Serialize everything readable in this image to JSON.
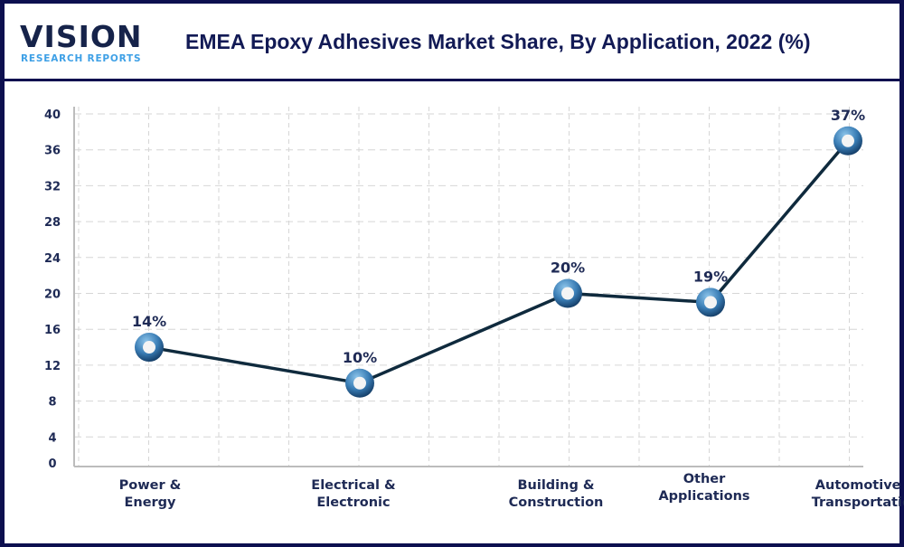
{
  "logo": {
    "main": "VISION",
    "sub": "RESEARCH REPORTS"
  },
  "colors": {
    "border": "#0d0f4f",
    "line": "#0f2a3d",
    "marker": "#2e6da0",
    "text": "#1e2a55"
  },
  "chart_data": {
    "type": "line",
    "title": "EMEA Epoxy Adhesives Market Share, By Application, 2022 (%)",
    "categories": [
      "Power & Energy",
      "Electrical & Electronic",
      "Building & Construction",
      "Other Applications",
      "Automotive & Transportation"
    ],
    "category_lines": [
      [
        "Power &",
        "Energy"
      ],
      [
        "Electrical &",
        "Electronic"
      ],
      [
        "Building &",
        "Construction"
      ],
      [
        "Other",
        "Applications"
      ],
      [
        "Automotive &",
        "Transportation"
      ]
    ],
    "values": [
      14,
      10,
      20,
      19,
      37
    ],
    "data_labels": [
      "14%",
      "10%",
      "20%",
      "19%",
      "37%"
    ],
    "yticks": [
      "0",
      "4",
      "8",
      "12",
      "16",
      "20",
      "24",
      "28",
      "32",
      "36",
      "40"
    ],
    "ylim": [
      0,
      40
    ],
    "grid": true,
    "legend": "none"
  }
}
